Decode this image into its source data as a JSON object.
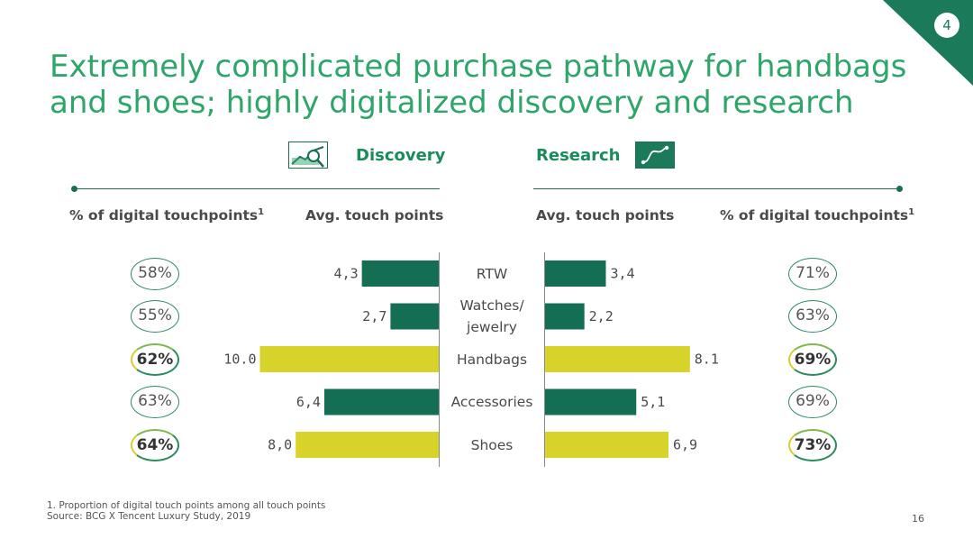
{
  "page": {
    "corner_number": "4",
    "title": "Extremely complicated purchase pathway for handbags and shoes; highly digitalized discovery and research",
    "page_number": "16",
    "colors": {
      "dark_green": "#146e53",
      "yellow": "#d8d32b",
      "title_green": "#2ea66a"
    }
  },
  "sections": {
    "left_label": "Discovery",
    "right_label": "Research",
    "left_icon": "magnifier-chart-icon",
    "right_icon": "path-curve-icon"
  },
  "headers": {
    "left_pct": "% of digital touchpoints",
    "left_pct_sup": "1",
    "left_avg": "Avg. touch points",
    "right_avg": "Avg. touch points",
    "right_pct": "% of digital touchpoints",
    "right_pct_sup": "1"
  },
  "chart_data": {
    "type": "bar",
    "categories": [
      "RTW",
      "Watches/ jewelry",
      "Handbags",
      "Accessories",
      "Shoes"
    ],
    "category_lines": [
      [
        "RTW"
      ],
      [
        "Watches/",
        "jewelry"
      ],
      [
        "Handbags"
      ],
      [
        "Accessories"
      ],
      [
        "Shoes"
      ]
    ],
    "series": [
      {
        "values": [
          4.3,
          2.7,
          10.0,
          6.4,
          8.0
        ],
        "labels": [
          "4,3",
          "2,7",
          "10.0",
          "6,4",
          "8,0"
        ]
      },
      {
        "values": [
          3.4,
          2.2,
          8.1,
          5.1,
          6.9
        ],
        "labels": [
          "3,4",
          "2,2",
          "8.1",
          "5,1",
          "6,9"
        ]
      }
    ],
    "highlight": [
      false,
      false,
      true,
      false,
      true
    ],
    "left_pct": [
      "58%",
      "55%",
      "62%",
      "63%",
      "64%"
    ],
    "right_pct": [
      "71%",
      "63%",
      "69%",
      "69%",
      "73%"
    ]
  },
  "footnotes": {
    "note1": "1. Proportion of digital touch points among all touch points",
    "source": "Source: BCG X Tencent Luxury Study, 2019"
  }
}
